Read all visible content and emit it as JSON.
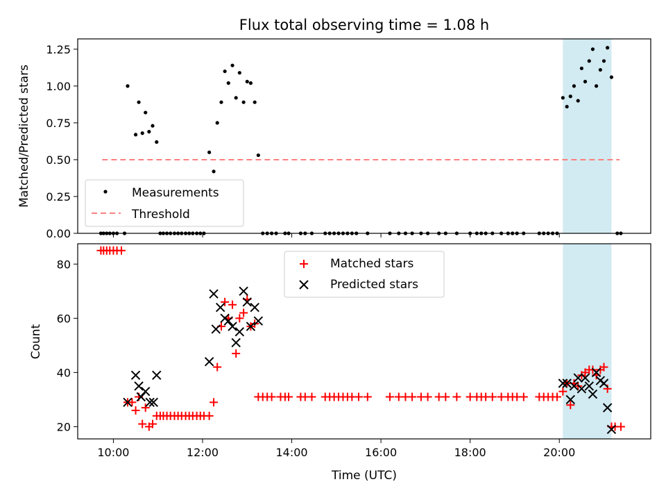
{
  "title": "Flux total observing time = 1.08 h",
  "colors": {
    "measurement": "#000000",
    "threshold": "#ff7f7f",
    "matched": "#ff0000",
    "predicted": "#000000",
    "shade": "#add8e6"
  },
  "chart_data": [
    {
      "type": "scatter",
      "title": "Flux total observing time = 1.08 h",
      "xlabel": "",
      "ylabel": "Matched/Predicted stars",
      "ylim": [
        0,
        1.32
      ],
      "yticks": [
        0,
        0.25,
        0.5,
        0.75,
        1.0,
        1.25
      ],
      "ytick_labels": [
        "0.00",
        "0.25",
        "0.50",
        "0.75",
        "1.00",
        "1.25"
      ],
      "xlim_hours": [
        9.2,
        22.05
      ],
      "shaded_span_hours": [
        20.08,
        21.17
      ],
      "legend": {
        "position": "lower-left",
        "entries": [
          "Measurements",
          "Threshold"
        ]
      },
      "threshold": {
        "name": "Threshold",
        "value": 0.5,
        "x_hours": [
          9.75,
          21.35
        ]
      },
      "series": [
        {
          "name": "Measurements",
          "points": [
            [
              9.72,
              0
            ],
            [
              9.78,
              0
            ],
            [
              9.85,
              0
            ],
            [
              9.92,
              0
            ],
            [
              10.0,
              0
            ],
            [
              10.08,
              0
            ],
            [
              10.25,
              0
            ],
            [
              10.32,
              1.0
            ],
            [
              10.5,
              0.67
            ],
            [
              10.57,
              0.89
            ],
            [
              10.65,
              0.68
            ],
            [
              10.72,
              0.82
            ],
            [
              10.8,
              0.69
            ],
            [
              10.88,
              0.73
            ],
            [
              10.97,
              0.62
            ],
            [
              11.05,
              0
            ],
            [
              11.12,
              0
            ],
            [
              11.2,
              0
            ],
            [
              11.28,
              0
            ],
            [
              11.37,
              0
            ],
            [
              11.45,
              0
            ],
            [
              11.53,
              0
            ],
            [
              11.62,
              0
            ],
            [
              11.7,
              0
            ],
            [
              11.78,
              0
            ],
            [
              11.87,
              0
            ],
            [
              11.95,
              0
            ],
            [
              12.03,
              0
            ],
            [
              12.15,
              0.55
            ],
            [
              12.25,
              0.42
            ],
            [
              12.33,
              0.75
            ],
            [
              12.42,
              0.89
            ],
            [
              12.5,
              1.1
            ],
            [
              12.58,
              1.02
            ],
            [
              12.67,
              1.14
            ],
            [
              12.75,
              0.92
            ],
            [
              12.83,
              1.09
            ],
            [
              12.92,
              0.89
            ],
            [
              13.0,
              1.03
            ],
            [
              13.08,
              1.02
            ],
            [
              13.17,
              0.89
            ],
            [
              13.25,
              0.53
            ],
            [
              13.35,
              0
            ],
            [
              13.45,
              0
            ],
            [
              13.55,
              0
            ],
            [
              13.65,
              0
            ],
            [
              13.85,
              0
            ],
            [
              13.93,
              0
            ],
            [
              14.2,
              0
            ],
            [
              14.3,
              0
            ],
            [
              14.45,
              0
            ],
            [
              14.75,
              0
            ],
            [
              14.85,
              0
            ],
            [
              14.95,
              0
            ],
            [
              15.05,
              0
            ],
            [
              15.15,
              0
            ],
            [
              15.25,
              0
            ],
            [
              15.35,
              0
            ],
            [
              15.45,
              0
            ],
            [
              15.7,
              0
            ],
            [
              16.2,
              0
            ],
            [
              16.4,
              0
            ],
            [
              16.55,
              0
            ],
            [
              16.7,
              0
            ],
            [
              16.9,
              0
            ],
            [
              17.05,
              0
            ],
            [
              17.3,
              0
            ],
            [
              17.45,
              0
            ],
            [
              17.7,
              0
            ],
            [
              18.0,
              0
            ],
            [
              18.15,
              0
            ],
            [
              18.25,
              0
            ],
            [
              18.35,
              0
            ],
            [
              18.5,
              0
            ],
            [
              18.7,
              0
            ],
            [
              18.85,
              0
            ],
            [
              18.95,
              0
            ],
            [
              19.05,
              0
            ],
            [
              19.2,
              0
            ],
            [
              19.55,
              0
            ],
            [
              19.65,
              0
            ],
            [
              19.75,
              0
            ],
            [
              19.85,
              0
            ],
            [
              19.95,
              0
            ],
            [
              20.08,
              0.92
            ],
            [
              20.17,
              0.86
            ],
            [
              20.25,
              0.93
            ],
            [
              20.33,
              1.0
            ],
            [
              20.42,
              0.9
            ],
            [
              20.5,
              1.12
            ],
            [
              20.58,
              1.03
            ],
            [
              20.67,
              1.17
            ],
            [
              20.75,
              1.25
            ],
            [
              20.83,
              1.0
            ],
            [
              20.92,
              1.11
            ],
            [
              21.0,
              1.17
            ],
            [
              21.08,
              1.26
            ],
            [
              21.17,
              1.06
            ],
            [
              21.3,
              0
            ],
            [
              21.38,
              0
            ]
          ]
        }
      ]
    },
    {
      "type": "scatter",
      "xlabel": "Time (UTC)",
      "ylabel": "Count",
      "ylim": [
        15.5,
        87.5
      ],
      "yticks": [
        20,
        40,
        60,
        80
      ],
      "ytick_labels": [
        "20",
        "40",
        "60",
        "80"
      ],
      "xlim_hours": [
        9.2,
        22.05
      ],
      "xticks_hours": [
        10,
        12,
        14,
        16,
        18,
        20
      ],
      "xtick_labels": [
        "10:00",
        "12:00",
        "14:00",
        "16:00",
        "18:00",
        "20:00"
      ],
      "shaded_span_hours": [
        20.08,
        21.17
      ],
      "legend": {
        "position": "upper-center",
        "entries": [
          "Matched stars",
          "Predicted stars"
        ]
      },
      "series": [
        {
          "name": "Matched stars",
          "marker": "plus",
          "points": [
            [
              9.72,
              85
            ],
            [
              9.78,
              85
            ],
            [
              9.85,
              85
            ],
            [
              9.92,
              85
            ],
            [
              10.0,
              85
            ],
            [
              10.08,
              85
            ],
            [
              10.18,
              85
            ],
            [
              10.32,
              29
            ],
            [
              10.42,
              29
            ],
            [
              10.5,
              26
            ],
            [
              10.57,
              31
            ],
            [
              10.65,
              21
            ],
            [
              10.72,
              27
            ],
            [
              10.8,
              20
            ],
            [
              10.88,
              21
            ],
            [
              10.97,
              24
            ],
            [
              11.05,
              24
            ],
            [
              11.12,
              24
            ],
            [
              11.2,
              24
            ],
            [
              11.28,
              24
            ],
            [
              11.37,
              24
            ],
            [
              11.45,
              24
            ],
            [
              11.53,
              24
            ],
            [
              11.62,
              24
            ],
            [
              11.7,
              24
            ],
            [
              11.78,
              24
            ],
            [
              11.87,
              24
            ],
            [
              11.95,
              24
            ],
            [
              12.03,
              24
            ],
            [
              12.15,
              24
            ],
            [
              12.25,
              29
            ],
            [
              12.33,
              42
            ],
            [
              12.42,
              57
            ],
            [
              12.5,
              66
            ],
            [
              12.58,
              60
            ],
            [
              12.67,
              65
            ],
            [
              12.75,
              47
            ],
            [
              12.83,
              60
            ],
            [
              12.92,
              62
            ],
            [
              13.0,
              67
            ],
            [
              13.08,
              57
            ],
            [
              13.17,
              58
            ],
            [
              13.25,
              31
            ],
            [
              13.35,
              31
            ],
            [
              13.45,
              31
            ],
            [
              13.55,
              31
            ],
            [
              13.75,
              31
            ],
            [
              13.85,
              31
            ],
            [
              13.93,
              31
            ],
            [
              14.2,
              31
            ],
            [
              14.3,
              31
            ],
            [
              14.45,
              31
            ],
            [
              14.75,
              31
            ],
            [
              14.85,
              31
            ],
            [
              14.95,
              31
            ],
            [
              15.05,
              31
            ],
            [
              15.15,
              31
            ],
            [
              15.25,
              31
            ],
            [
              15.35,
              31
            ],
            [
              15.5,
              31
            ],
            [
              15.7,
              31
            ],
            [
              16.2,
              31
            ],
            [
              16.4,
              31
            ],
            [
              16.55,
              31
            ],
            [
              16.7,
              31
            ],
            [
              16.9,
              31
            ],
            [
              17.05,
              31
            ],
            [
              17.3,
              31
            ],
            [
              17.45,
              31
            ],
            [
              17.7,
              31
            ],
            [
              18.0,
              31
            ],
            [
              18.15,
              31
            ],
            [
              18.25,
              31
            ],
            [
              18.35,
              31
            ],
            [
              18.5,
              31
            ],
            [
              18.7,
              31
            ],
            [
              18.85,
              31
            ],
            [
              18.95,
              31
            ],
            [
              19.05,
              31
            ],
            [
              19.2,
              31
            ],
            [
              19.55,
              31
            ],
            [
              19.65,
              31
            ],
            [
              19.75,
              31
            ],
            [
              19.85,
              31
            ],
            [
              19.95,
              31
            ],
            [
              20.08,
              33
            ],
            [
              20.17,
              36
            ],
            [
              20.25,
              28
            ],
            [
              20.33,
              36
            ],
            [
              20.42,
              35
            ],
            [
              20.5,
              39
            ],
            [
              20.58,
              40
            ],
            [
              20.67,
              41
            ],
            [
              20.75,
              41
            ],
            [
              20.83,
              39
            ],
            [
              20.92,
              41
            ],
            [
              21.0,
              42
            ],
            [
              21.08,
              34
            ],
            [
              21.17,
              20
            ],
            [
              21.25,
              20
            ],
            [
              21.38,
              20
            ]
          ]
        },
        {
          "name": "Predicted stars",
          "marker": "x",
          "points": [
            [
              10.32,
              29
            ],
            [
              10.5,
              39
            ],
            [
              10.57,
              35
            ],
            [
              10.62,
              31
            ],
            [
              10.72,
              33
            ],
            [
              10.82,
              29
            ],
            [
              10.9,
              29
            ],
            [
              10.97,
              39
            ],
            [
              12.15,
              44
            ],
            [
              12.25,
              69
            ],
            [
              12.3,
              56
            ],
            [
              12.4,
              64
            ],
            [
              12.5,
              60
            ],
            [
              12.58,
              59
            ],
            [
              12.67,
              57
            ],
            [
              12.75,
              51
            ],
            [
              12.83,
              55
            ],
            [
              12.92,
              70
            ],
            [
              13.0,
              66
            ],
            [
              13.08,
              57
            ],
            [
              13.17,
              64
            ],
            [
              13.25,
              59
            ],
            [
              20.08,
              36
            ],
            [
              20.17,
              36
            ],
            [
              20.25,
              30
            ],
            [
              20.33,
              35
            ],
            [
              20.42,
              38
            ],
            [
              20.5,
              34
            ],
            [
              20.58,
              38
            ],
            [
              20.67,
              35
            ],
            [
              20.75,
              32
            ],
            [
              20.83,
              40
            ],
            [
              20.92,
              37
            ],
            [
              21.0,
              36
            ],
            [
              21.08,
              27
            ],
            [
              21.17,
              19
            ]
          ]
        }
      ]
    }
  ]
}
